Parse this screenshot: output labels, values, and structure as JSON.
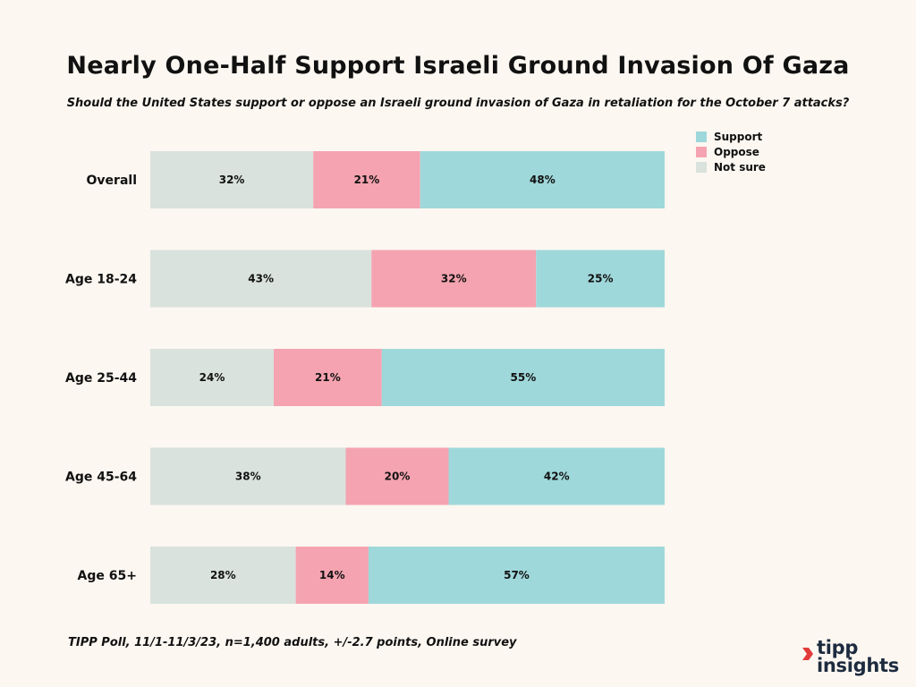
{
  "title": "Nearly One-Half Support Israeli Ground Invasion Of Gaza",
  "subtitle": "Should the United States support or oppose an Israeli ground invasion of Gaza in retaliation for the October 7 attacks?",
  "footnote": "TIPP Poll, 11/1-11/3/23, n=1,400 adults, +/-2.7 points, Online survey",
  "logo": {
    "line1": "tipp",
    "line2": "insights"
  },
  "colors": {
    "support": "#9fd8da",
    "oppose": "#f5a3b0",
    "not_sure": "#d9e2dd",
    "background": "#fcf7f1"
  },
  "legend": [
    {
      "key": "support",
      "label": "Support"
    },
    {
      "key": "oppose",
      "label": "Oppose"
    },
    {
      "key": "not_sure",
      "label": "Not sure"
    }
  ],
  "chart_data": {
    "type": "bar",
    "orientation": "horizontal",
    "stacked": true,
    "title": "Nearly One-Half Support Israeli Ground Invasion Of Gaza",
    "categories": [
      "Overall",
      "Age 18-24",
      "Age 25-44",
      "Age 45-64",
      "Age 65+"
    ],
    "series": [
      {
        "name": "Not sure",
        "key": "not_sure",
        "values": [
          32,
          43,
          24,
          38,
          28
        ]
      },
      {
        "name": "Oppose",
        "key": "oppose",
        "values": [
          21,
          32,
          21,
          20,
          14
        ]
      },
      {
        "name": "Support",
        "key": "support",
        "values": [
          48,
          25,
          55,
          42,
          57
        ]
      }
    ],
    "value_format": "percent",
    "legend_position": "top-right",
    "grid": false
  }
}
